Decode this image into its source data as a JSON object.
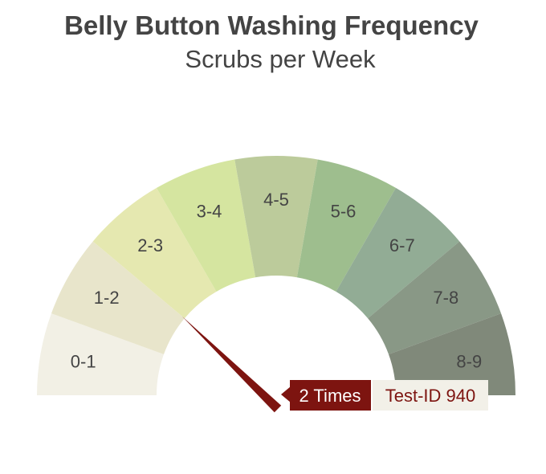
{
  "chart_data": {
    "type": "gauge",
    "title": "Belly Button Washing Frequency",
    "subtitle": "Scrubs per Week",
    "range": [
      0,
      9
    ],
    "segments": [
      {
        "label": "0-1",
        "from": 0,
        "to": 1,
        "color": "#f2f0e5"
      },
      {
        "label": "1-2",
        "from": 1,
        "to": 2,
        "color": "#e8e5cb"
      },
      {
        "label": "2-3",
        "from": 2,
        "to": 3,
        "color": "#e5e8b0"
      },
      {
        "label": "3-4",
        "from": 3,
        "to": 4,
        "color": "#d5e5a0"
      },
      {
        "label": "4-5",
        "from": 4,
        "to": 5,
        "color": "#bccb9b"
      },
      {
        "label": "5-6",
        "from": 5,
        "to": 6,
        "color": "#9ebe8e"
      },
      {
        "label": "6-7",
        "from": 6,
        "to": 7,
        "color": "#92ac95"
      },
      {
        "label": "7-8",
        "from": 7,
        "to": 8,
        "color": "#899886"
      },
      {
        "label": "8-9",
        "from": 8,
        "to": 9,
        "color": "#80897a"
      }
    ],
    "value": 2,
    "value_label": "2 Times",
    "annotation": "Test-ID 940",
    "needle_color": "#7d1410"
  }
}
